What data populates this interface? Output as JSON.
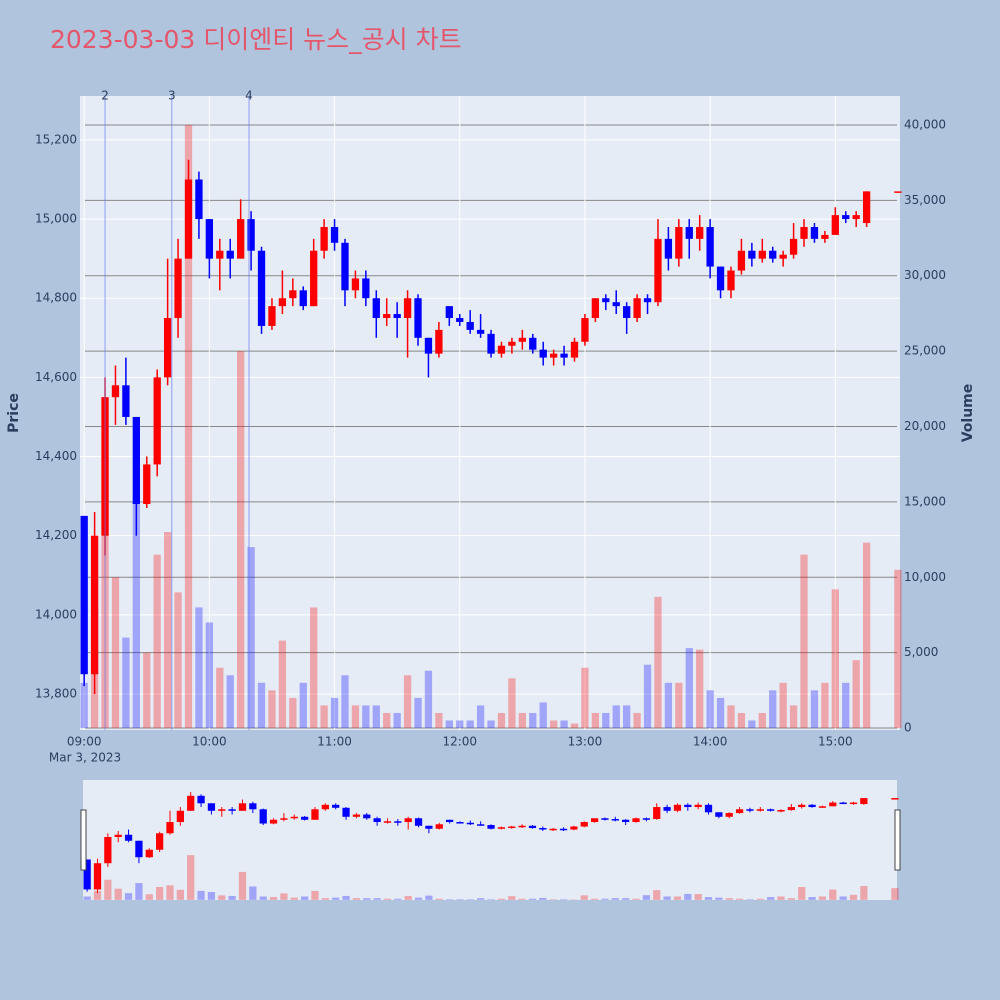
{
  "chart_data": {
    "type": "candlestick",
    "title": "2023-03-03 디이엔티 뉴스_공시 차트",
    "ylabel": "Price",
    "y2label": "Volume",
    "x_date_label": "Mar 3, 2023",
    "colors": {
      "up": "#ff0000",
      "down": "#0000ff"
    },
    "x": [
      "2023-03-03 09:00",
      "2023-03-03 09:05",
      "2023-03-03 09:10",
      "2023-03-03 09:15",
      "2023-03-03 09:20",
      "2023-03-03 09:25",
      "2023-03-03 09:30",
      "2023-03-03 09:35",
      "2023-03-03 09:40",
      "2023-03-03 09:45",
      "2023-03-03 09:50",
      "2023-03-03 09:55",
      "2023-03-03 10:00",
      "2023-03-03 10:05",
      "2023-03-03 10:10",
      "2023-03-03 10:15",
      "2023-03-03 10:20",
      "2023-03-03 10:25",
      "2023-03-03 10:30",
      "2023-03-03 10:35",
      "2023-03-03 10:40",
      "2023-03-03 10:45",
      "2023-03-03 10:50",
      "2023-03-03 10:55",
      "2023-03-03 11:00",
      "2023-03-03 11:05",
      "2023-03-03 11:10",
      "2023-03-03 11:15",
      "2023-03-03 11:20",
      "2023-03-03 11:25",
      "2023-03-03 11:30",
      "2023-03-03 11:35",
      "2023-03-03 11:40",
      "2023-03-03 11:45",
      "2023-03-03 11:50",
      "2023-03-03 11:55",
      "2023-03-03 12:00",
      "2023-03-03 12:05",
      "2023-03-03 12:10",
      "2023-03-03 12:15",
      "2023-03-03 12:20",
      "2023-03-03 12:25",
      "2023-03-03 12:30",
      "2023-03-03 12:35",
      "2023-03-03 12:40",
      "2023-03-03 12:45",
      "2023-03-03 12:50",
      "2023-03-03 12:55",
      "2023-03-03 13:00",
      "2023-03-03 13:05",
      "2023-03-03 13:10",
      "2023-03-03 13:15",
      "2023-03-03 13:20",
      "2023-03-03 13:25",
      "2023-03-03 13:30",
      "2023-03-03 13:35",
      "2023-03-03 13:40",
      "2023-03-03 13:45",
      "2023-03-03 13:50",
      "2023-03-03 13:55",
      "2023-03-03 14:00",
      "2023-03-03 14:05",
      "2023-03-03 14:10",
      "2023-03-03 14:15",
      "2023-03-03 14:20",
      "2023-03-03 14:25",
      "2023-03-03 14:30",
      "2023-03-03 14:35",
      "2023-03-03 14:40",
      "2023-03-03 14:45",
      "2023-03-03 14:50",
      "2023-03-03 14:55",
      "2023-03-03 15:00",
      "2023-03-03 15:05",
      "2023-03-03 15:10",
      "2023-03-03 15:15",
      "2023-03-03 15:30"
    ],
    "open": [
      14250,
      13850,
      14200,
      14550,
      14580,
      14500,
      14280,
      14380,
      14600,
      14750,
      14900,
      15100,
      15000,
      14900,
      14920,
      14900,
      15000,
      14920,
      14730,
      14780,
      14800,
      14820,
      14780,
      14920,
      14980,
      14940,
      14820,
      14850,
      14800,
      14750,
      14760,
      14750,
      14800,
      14700,
      14660,
      14780,
      14750,
      14740,
      14720,
      14710,
      14660,
      14680,
      14690,
      14700,
      14670,
      14650,
      14660,
      14650,
      14690,
      14750,
      14800,
      14790,
      14780,
      14750,
      14800,
      14790,
      14950,
      14900,
      14980,
      14950,
      14980,
      14880,
      14820,
      14870,
      14920,
      14900,
      14920,
      14900,
      14910,
      14950,
      14980,
      14950,
      14960,
      15010,
      15000,
      14990,
      15070
    ],
    "high": [
      14250,
      14260,
      14600,
      14630,
      14650,
      14500,
      14400,
      14620,
      14900,
      14950,
      15150,
      15120,
      15000,
      14950,
      14950,
      15050,
      15020,
      14930,
      14800,
      14870,
      14850,
      14830,
      14950,
      15000,
      15000,
      14950,
      14870,
      14870,
      14820,
      14800,
      14790,
      14820,
      14810,
      14700,
      14740,
      14780,
      14760,
      14770,
      14760,
      14720,
      14690,
      14700,
      14720,
      14710,
      14690,
      14670,
      14680,
      14700,
      14760,
      14800,
      14810,
      14820,
      14790,
      14810,
      14810,
      15000,
      14980,
      15000,
      15000,
      15010,
      15000,
      14880,
      14880,
      14950,
      14940,
      14950,
      14930,
      14920,
      14990,
      15000,
      14990,
      14970,
      15030,
      15020,
      15020,
      15070,
      15070
    ],
    "low": [
      13820,
      13800,
      14150,
      14480,
      14480,
      14200,
      14270,
      14350,
      14580,
      14700,
      14900,
      14950,
      14850,
      14820,
      14850,
      14900,
      14870,
      14710,
      14720,
      14760,
      14780,
      14770,
      14780,
      14900,
      14920,
      14780,
      14800,
      14780,
      14700,
      14730,
      14700,
      14650,
      14680,
      14600,
      14650,
      14730,
      14730,
      14710,
      14700,
      14650,
      14650,
      14660,
      14670,
      14660,
      14630,
      14630,
      14630,
      14640,
      14680,
      14740,
      14770,
      14760,
      14710,
      14740,
      14760,
      14780,
      14870,
      14880,
      14900,
      14920,
      14850,
      14800,
      14800,
      14860,
      14880,
      14890,
      14890,
      14880,
      14900,
      14930,
      14940,
      14940,
      14960,
      14990,
      14980,
      14980,
      15070
    ],
    "close": [
      13850,
      14200,
      14550,
      14580,
      14500,
      14280,
      14380,
      14600,
      14750,
      14900,
      15100,
      15000,
      14900,
      14920,
      14900,
      15000,
      14920,
      14730,
      14780,
      14800,
      14820,
      14780,
      14920,
      14980,
      14940,
      14820,
      14850,
      14800,
      14750,
      14760,
      14750,
      14800,
      14700,
      14660,
      14720,
      14750,
      14740,
      14720,
      14710,
      14660,
      14680,
      14690,
      14700,
      14670,
      14650,
      14660,
      14650,
      14690,
      14750,
      14800,
      14790,
      14780,
      14750,
      14800,
      14790,
      14950,
      14900,
      14980,
      14950,
      14980,
      14880,
      14820,
      14870,
      14920,
      14900,
      14920,
      14900,
      14910,
      14950,
      14980,
      14950,
      14960,
      15010,
      15000,
      15010,
      15070,
      15070
    ],
    "volume": [
      3000,
      8000,
      18000,
      10000,
      6000,
      15000,
      5000,
      11500,
      13000,
      9000,
      40000,
      8000,
      7000,
      4000,
      3500,
      25000,
      12000,
      3000,
      2500,
      5800,
      2000,
      3000,
      8000,
      1500,
      2000,
      3500,
      1500,
      1500,
      1500,
      1000,
      1000,
      3500,
      2000,
      3800,
      1000,
      500,
      500,
      500,
      1500,
      500,
      1000,
      3300,
      1000,
      1000,
      1700,
      500,
      500,
      300,
      4000,
      1000,
      1000,
      1500,
      1500,
      1000,
      4200,
      8700,
      3000,
      3000,
      5300,
      5200,
      2500,
      2000,
      1500,
      1000,
      500,
      1000,
      2500,
      3000,
      1500,
      11500,
      2500,
      3000,
      9200,
      3000,
      4500,
      12300,
      10500
    ],
    "xlim": [
      "2023-03-03 08:58",
      "2023-03-03 15:31"
    ],
    "xticks": [
      {
        "value": "2023-03-03 09:00",
        "label": "09:00"
      },
      {
        "value": "2023-03-03 10:00",
        "label": "10:00"
      },
      {
        "value": "2023-03-03 11:00",
        "label": "11:00"
      },
      {
        "value": "2023-03-03 12:00",
        "label": "12:00"
      },
      {
        "value": "2023-03-03 13:00",
        "label": "13:00"
      },
      {
        "value": "2023-03-03 14:00",
        "label": "14:00"
      },
      {
        "value": "2023-03-03 15:00",
        "label": "15:00"
      }
    ],
    "ylim": [
      13709,
      15311
    ],
    "yticks": [
      {
        "value": 13800,
        "label": "13,800"
      },
      {
        "value": 14000,
        "label": "14,000"
      },
      {
        "value": 14200,
        "label": "14,200"
      },
      {
        "value": 14400,
        "label": "14,400"
      },
      {
        "value": 14600,
        "label": "14,600"
      },
      {
        "value": 14800,
        "label": "14,800"
      },
      {
        "value": 15000,
        "label": "15,000"
      },
      {
        "value": 15200,
        "label": "15,200"
      }
    ],
    "y2lim": [
      -130,
      41920
    ],
    "y2ticks": [
      0,
      {
        "value": 5000,
        "label": "5,000"
      },
      {
        "value": 10000,
        "label": "10,000"
      },
      {
        "value": 15000,
        "label": "15,000"
      },
      {
        "value": 20000,
        "label": "20,000"
      },
      {
        "value": 25000,
        "label": "25,000"
      },
      {
        "value": 30000,
        "label": "30,000"
      },
      {
        "value": 35000,
        "label": "35,000"
      },
      {
        "value": 40000,
        "label": "40,000"
      }
    ],
    "annotations": [
      {
        "x": "2023-03-03 09:10",
        "text": "2"
      },
      {
        "x": "2023-03-03 09:42",
        "text": "3"
      },
      {
        "x": "2023-03-03 10:19",
        "text": "4"
      }
    ],
    "rangeslider": true
  }
}
